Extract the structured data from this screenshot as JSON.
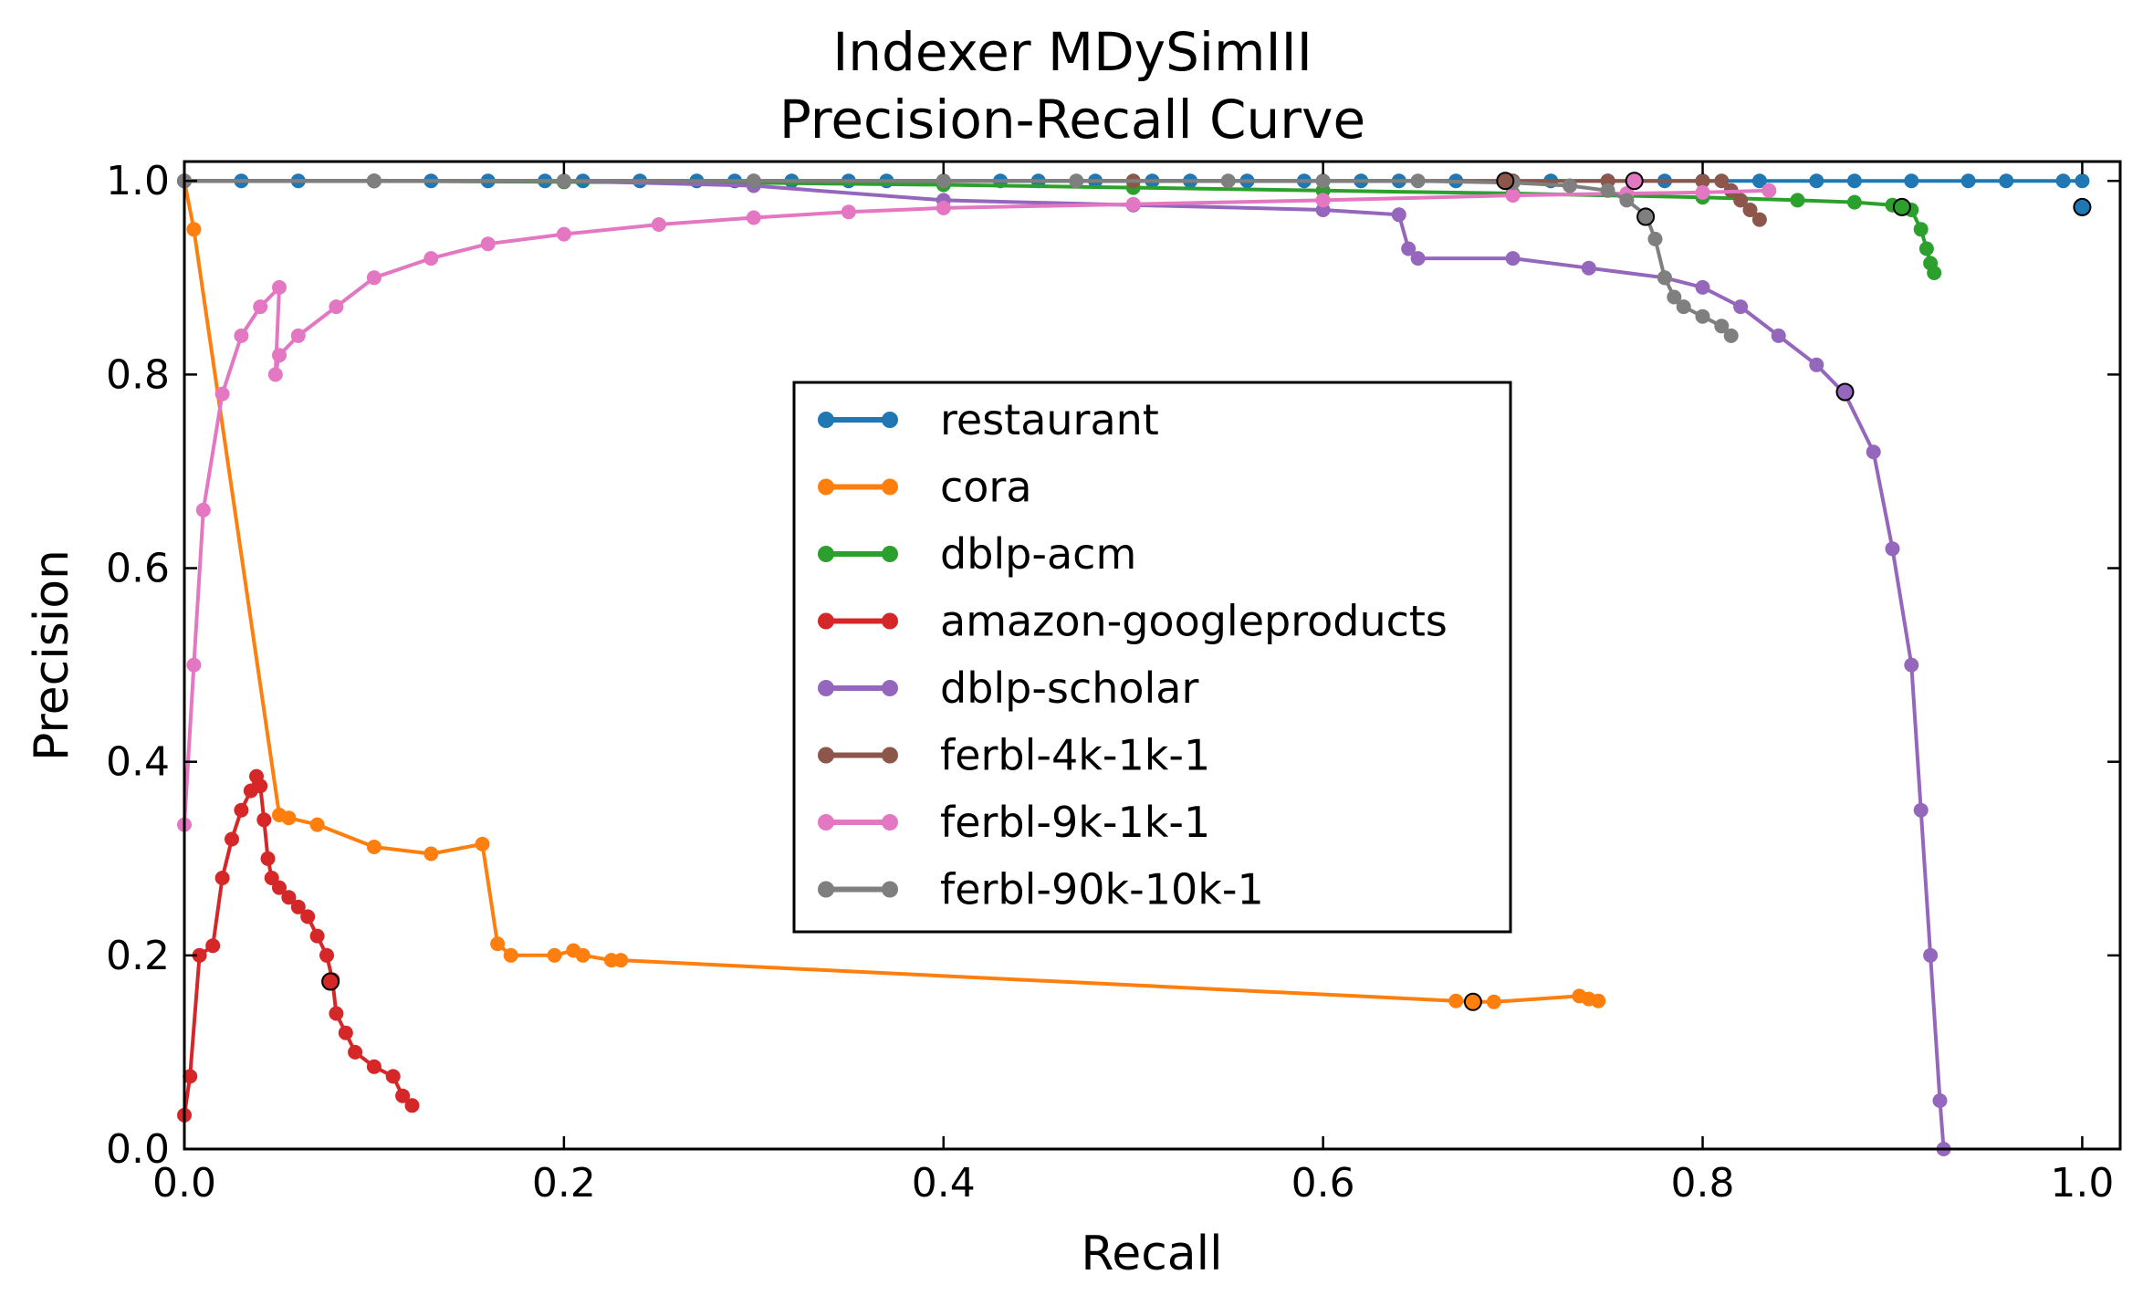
{
  "chart_data": {
    "type": "line",
    "title_lines": [
      "Indexer MDySimIII",
      "Precision-Recall Curve"
    ],
    "xlabel": "Recall",
    "ylabel": "Precision",
    "xlim": [
      0.0,
      1.02
    ],
    "ylim": [
      0.0,
      1.02
    ],
    "xticks": [
      "0.0",
      "0.2",
      "0.4",
      "0.6",
      "0.8",
      "1.0"
    ],
    "yticks": [
      "0.0",
      "0.2",
      "0.4",
      "0.6",
      "0.8",
      "1.0"
    ],
    "grid": false,
    "legend_position": "center",
    "series": [
      {
        "name": "restaurant",
        "color": "#1f77b4",
        "x": [
          0.0,
          0.03,
          0.06,
          0.1,
          0.13,
          0.16,
          0.19,
          0.21,
          0.24,
          0.27,
          0.29,
          0.32,
          0.35,
          0.37,
          0.4,
          0.43,
          0.45,
          0.48,
          0.51,
          0.53,
          0.56,
          0.59,
          0.62,
          0.64,
          0.67,
          0.7,
          0.72,
          0.75,
          0.78,
          0.8,
          0.83,
          0.86,
          0.88,
          0.91,
          0.94,
          0.96,
          0.99,
          1.0
        ],
        "y": [
          1.0,
          1.0,
          1.0,
          1.0,
          1.0,
          1.0,
          1.0,
          1.0,
          1.0,
          1.0,
          1.0,
          1.0,
          1.0,
          1.0,
          1.0,
          1.0,
          1.0,
          1.0,
          1.0,
          1.0,
          1.0,
          1.0,
          1.0,
          1.0,
          1.0,
          1.0,
          1.0,
          1.0,
          1.0,
          1.0,
          1.0,
          1.0,
          1.0,
          1.0,
          1.0,
          1.0,
          1.0,
          1.0
        ],
        "marked_point": [
          1.0,
          0.973
        ]
      },
      {
        "name": "cora",
        "color": "#ff7f0e",
        "x": [
          0.0,
          0.005,
          0.05,
          0.055,
          0.07,
          0.1,
          0.13,
          0.157,
          0.165,
          0.172,
          0.195,
          0.205,
          0.21,
          0.225,
          0.23,
          0.67,
          0.68,
          0.69,
          0.735,
          0.74,
          0.745
        ],
        "y": [
          1.0,
          0.95,
          0.345,
          0.342,
          0.335,
          0.312,
          0.305,
          0.315,
          0.212,
          0.2,
          0.2,
          0.205,
          0.2,
          0.195,
          0.195,
          0.153,
          0.152,
          0.152,
          0.158,
          0.155,
          0.153
        ],
        "marked_point": [
          0.679,
          0.152
        ]
      },
      {
        "name": "dblp-acm",
        "color": "#2ca02c",
        "x": [
          0.0,
          0.1,
          0.2,
          0.3,
          0.4,
          0.5,
          0.6,
          0.7,
          0.8,
          0.85,
          0.88,
          0.9,
          0.91,
          0.915,
          0.918,
          0.92,
          0.922
        ],
        "y": [
          1.0,
          1.0,
          0.999,
          0.998,
          0.996,
          0.993,
          0.99,
          0.987,
          0.983,
          0.98,
          0.978,
          0.975,
          0.97,
          0.95,
          0.93,
          0.915,
          0.905
        ],
        "marked_point": [
          0.905,
          0.973
        ]
      },
      {
        "name": "amazon-googleproducts",
        "color": "#d62728",
        "x": [
          0.0,
          0.003,
          0.008,
          0.015,
          0.02,
          0.025,
          0.03,
          0.035,
          0.038,
          0.04,
          0.042,
          0.044,
          0.046,
          0.05,
          0.055,
          0.06,
          0.065,
          0.07,
          0.075,
          0.078,
          0.08,
          0.085,
          0.09,
          0.1,
          0.11,
          0.115,
          0.12
        ],
        "y": [
          0.035,
          0.075,
          0.2,
          0.21,
          0.28,
          0.32,
          0.35,
          0.37,
          0.385,
          0.375,
          0.34,
          0.3,
          0.28,
          0.27,
          0.26,
          0.25,
          0.24,
          0.22,
          0.2,
          0.175,
          0.14,
          0.12,
          0.1,
          0.085,
          0.075,
          0.055,
          0.045
        ],
        "marked_point": [
          0.077,
          0.173
        ]
      },
      {
        "name": "dblp-scholar",
        "color": "#9467bd",
        "x": [
          0.0,
          0.1,
          0.2,
          0.3,
          0.4,
          0.5,
          0.6,
          0.64,
          0.645,
          0.65,
          0.7,
          0.74,
          0.78,
          0.8,
          0.82,
          0.84,
          0.86,
          0.875,
          0.89,
          0.9,
          0.91,
          0.915,
          0.92,
          0.925,
          0.927
        ],
        "y": [
          1.0,
          1.0,
          1.0,
          0.995,
          0.98,
          0.975,
          0.97,
          0.965,
          0.93,
          0.92,
          0.92,
          0.91,
          0.9,
          0.89,
          0.87,
          0.84,
          0.81,
          0.78,
          0.72,
          0.62,
          0.5,
          0.35,
          0.2,
          0.05,
          0.0
        ],
        "marked_point": [
          0.875,
          0.782
        ]
      },
      {
        "name": "ferbl-4k-1k-1",
        "color": "#8c564b",
        "x": [
          0.0,
          0.1,
          0.2,
          0.3,
          0.4,
          0.5,
          0.6,
          0.7,
          0.75,
          0.8,
          0.81,
          0.815,
          0.82,
          0.825,
          0.83
        ],
        "y": [
          1.0,
          1.0,
          1.0,
          1.0,
          1.0,
          1.0,
          1.0,
          1.0,
          1.0,
          1.0,
          1.0,
          0.99,
          0.98,
          0.97,
          0.96
        ],
        "marked_point": [
          0.696,
          1.0
        ]
      },
      {
        "name": "ferbl-9k-1k-1",
        "color": "#e377c2",
        "x": [
          0.0,
          0.005,
          0.01,
          0.02,
          0.03,
          0.04,
          0.05,
          0.048,
          0.05,
          0.06,
          0.08,
          0.1,
          0.13,
          0.16,
          0.2,
          0.25,
          0.3,
          0.35,
          0.4,
          0.5,
          0.6,
          0.7,
          0.76,
          0.8,
          0.835
        ],
        "y": [
          0.335,
          0.5,
          0.66,
          0.78,
          0.84,
          0.87,
          0.89,
          0.8,
          0.82,
          0.84,
          0.87,
          0.9,
          0.92,
          0.935,
          0.945,
          0.955,
          0.962,
          0.968,
          0.972,
          0.976,
          0.98,
          0.985,
          0.987,
          0.988,
          0.99
        ],
        "marked_point": [
          0.764,
          1.0
        ]
      },
      {
        "name": "ferbl-90k-10k-1",
        "color": "#7f7f7f",
        "x": [
          0.0,
          0.1,
          0.2,
          0.3,
          0.4,
          0.47,
          0.55,
          0.6,
          0.65,
          0.7,
          0.73,
          0.75,
          0.76,
          0.77,
          0.775,
          0.78,
          0.785,
          0.79,
          0.8,
          0.81,
          0.815
        ],
        "y": [
          1.0,
          1.0,
          1.0,
          1.0,
          1.0,
          1.0,
          1.0,
          1.0,
          1.0,
          0.998,
          0.995,
          0.99,
          0.98,
          0.965,
          0.94,
          0.9,
          0.88,
          0.87,
          0.86,
          0.85,
          0.84
        ],
        "marked_point": [
          0.77,
          0.963
        ]
      }
    ]
  }
}
